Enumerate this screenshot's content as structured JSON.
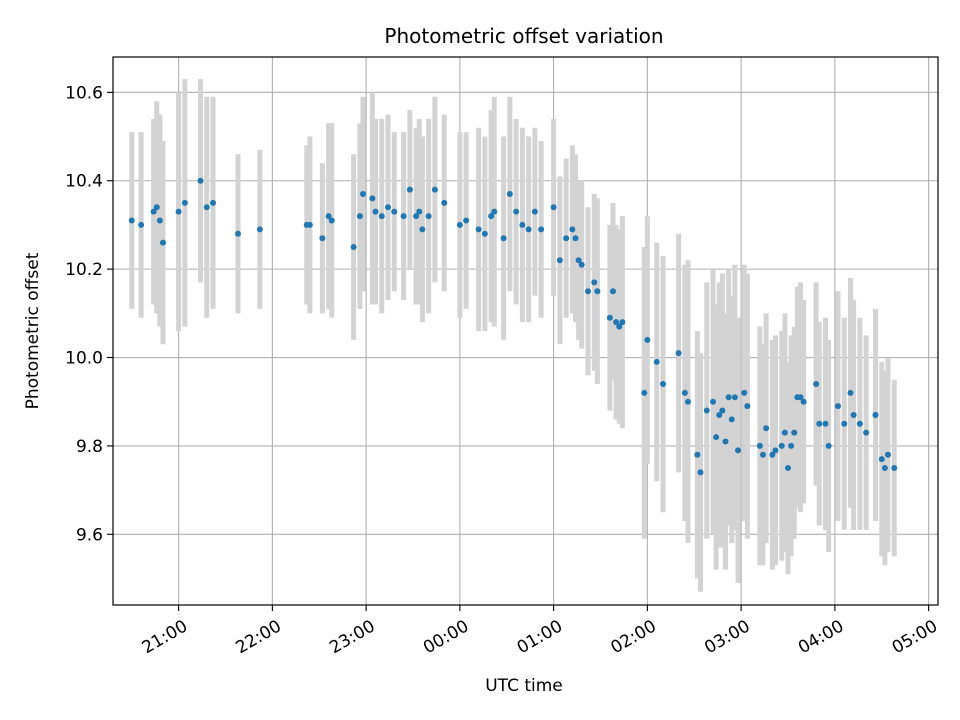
{
  "chart_data": {
    "type": "scatter",
    "title": "Photometric offset variation",
    "xlabel": "UTC time",
    "ylabel": "Photometric offset",
    "grid": true,
    "xlim": [
      "20:18",
      "29:06"
    ],
    "ylim": [
      9.44,
      10.68
    ],
    "x_ticks": [
      "21:00",
      "22:00",
      "23:00",
      "00:00",
      "01:00",
      "02:00",
      "03:00",
      "04:00",
      "05:00"
    ],
    "y_ticks": [
      "9.6",
      "9.8",
      "10.0",
      "10.2",
      "10.4",
      "10.6"
    ],
    "colors": {
      "points": "#1f77b4",
      "errorbars": "#d3d3d3",
      "grid": "#b0b0b0"
    },
    "series": [
      {
        "x": [
          "20:30",
          "20:36",
          "20:44",
          "20:46",
          "20:48",
          "20:50",
          "21:00",
          "21:04",
          "21:14",
          "21:18",
          "21:22",
          "21:38",
          "21:52",
          "22:22",
          "22:24",
          "22:32",
          "22:36",
          "22:38",
          "22:52",
          "22:56",
          "22:58",
          "23:04",
          "23:06",
          "23:10",
          "23:14",
          "23:18",
          "23:24",
          "23:28",
          "23:32",
          "23:34",
          "23:36",
          "23:40",
          "23:44",
          "23:50",
          "24:00",
          "24:04",
          "24:12",
          "24:16",
          "24:20",
          "24:22",
          "24:28",
          "24:32",
          "24:36",
          "24:40",
          "24:44",
          "24:48",
          "24:52",
          "25:00",
          "25:04",
          "25:08",
          "25:12",
          "25:14",
          "25:16",
          "25:18",
          "25:22",
          "25:26",
          "25:28",
          "25:36",
          "25:38",
          "25:40",
          "25:42",
          "25:44",
          "25:58",
          "26:00",
          "26:06",
          "26:10",
          "26:20",
          "26:24",
          "26:26",
          "26:32",
          "26:34",
          "26:38",
          "26:42",
          "26:44",
          "26:46",
          "26:48",
          "26:50",
          "26:52",
          "26:54",
          "26:56",
          "26:58",
          "27:02",
          "27:04",
          "27:12",
          "27:14",
          "27:16",
          "27:20",
          "27:22",
          "27:26",
          "27:28",
          "27:30",
          "27:32",
          "27:34",
          "27:36",
          "27:38",
          "27:40",
          "27:48",
          "27:50",
          "27:54",
          "27:56",
          "28:02",
          "28:06",
          "28:10",
          "28:12",
          "28:16",
          "28:20",
          "28:26",
          "28:30",
          "28:32",
          "28:34",
          "28:38"
        ],
        "y": [
          10.31,
          10.3,
          10.33,
          10.34,
          10.31,
          10.26,
          10.33,
          10.35,
          10.4,
          10.34,
          10.35,
          10.28,
          10.29,
          10.3,
          10.3,
          10.27,
          10.32,
          10.31,
          10.25,
          10.32,
          10.37,
          10.36,
          10.33,
          10.32,
          10.34,
          10.33,
          10.32,
          10.38,
          10.32,
          10.33,
          10.29,
          10.32,
          10.38,
          10.35,
          10.3,
          10.31,
          10.29,
          10.28,
          10.32,
          10.33,
          10.27,
          10.37,
          10.33,
          10.3,
          10.29,
          10.33,
          10.29,
          10.34,
          10.22,
          10.27,
          10.29,
          10.27,
          10.22,
          10.21,
          10.15,
          10.17,
          10.15,
          10.09,
          10.15,
          10.08,
          10.07,
          10.08,
          9.92,
          10.04,
          9.99,
          9.94,
          10.01,
          9.92,
          9.9,
          9.78,
          9.74,
          9.88,
          9.9,
          9.82,
          9.87,
          9.88,
          9.81,
          9.91,
          9.86,
          9.91,
          9.79,
          9.92,
          9.89,
          9.8,
          9.78,
          9.84,
          9.78,
          9.79,
          9.8,
          9.83,
          9.75,
          9.8,
          9.83,
          9.91,
          9.91,
          9.9,
          9.94,
          9.85,
          9.85,
          9.8,
          9.89,
          9.85,
          9.92,
          9.87,
          9.85,
          9.83,
          9.87,
          9.77,
          9.75,
          9.78,
          9.75
        ],
        "err": [
          0.2,
          0.21,
          0.21,
          0.24,
          0.24,
          0.23,
          0.27,
          0.28,
          0.23,
          0.25,
          0.24,
          0.18,
          0.18,
          0.18,
          0.2,
          0.17,
          0.21,
          0.22,
          0.21,
          0.21,
          0.22,
          0.24,
          0.21,
          0.22,
          0.21,
          0.18,
          0.19,
          0.18,
          0.2,
          0.21,
          0.21,
          0.22,
          0.21,
          0.2,
          0.21,
          0.2,
          0.23,
          0.22,
          0.24,
          0.26,
          0.23,
          0.22,
          0.21,
          0.22,
          0.21,
          0.19,
          0.2,
          0.2,
          0.19,
          0.18,
          0.19,
          0.19,
          0.18,
          0.19,
          0.19,
          0.2,
          0.21,
          0.21,
          0.2,
          0.22,
          0.22,
          0.24,
          0.33,
          0.28,
          0.27,
          0.29,
          0.27,
          0.29,
          0.32,
          0.28,
          0.27,
          0.29,
          0.3,
          0.3,
          0.3,
          0.31,
          0.29,
          0.29,
          0.28,
          0.3,
          0.3,
          0.29,
          0.3,
          0.27,
          0.25,
          0.26,
          0.26,
          0.26,
          0.26,
          0.27,
          0.24,
          0.25,
          0.24,
          0.25,
          0.26,
          0.23,
          0.23,
          0.23,
          0.24,
          0.24,
          0.26,
          0.24,
          0.26,
          0.26,
          0.24,
          0.22,
          0.24,
          0.22,
          0.22,
          0.22,
          0.2
        ]
      }
    ]
  }
}
